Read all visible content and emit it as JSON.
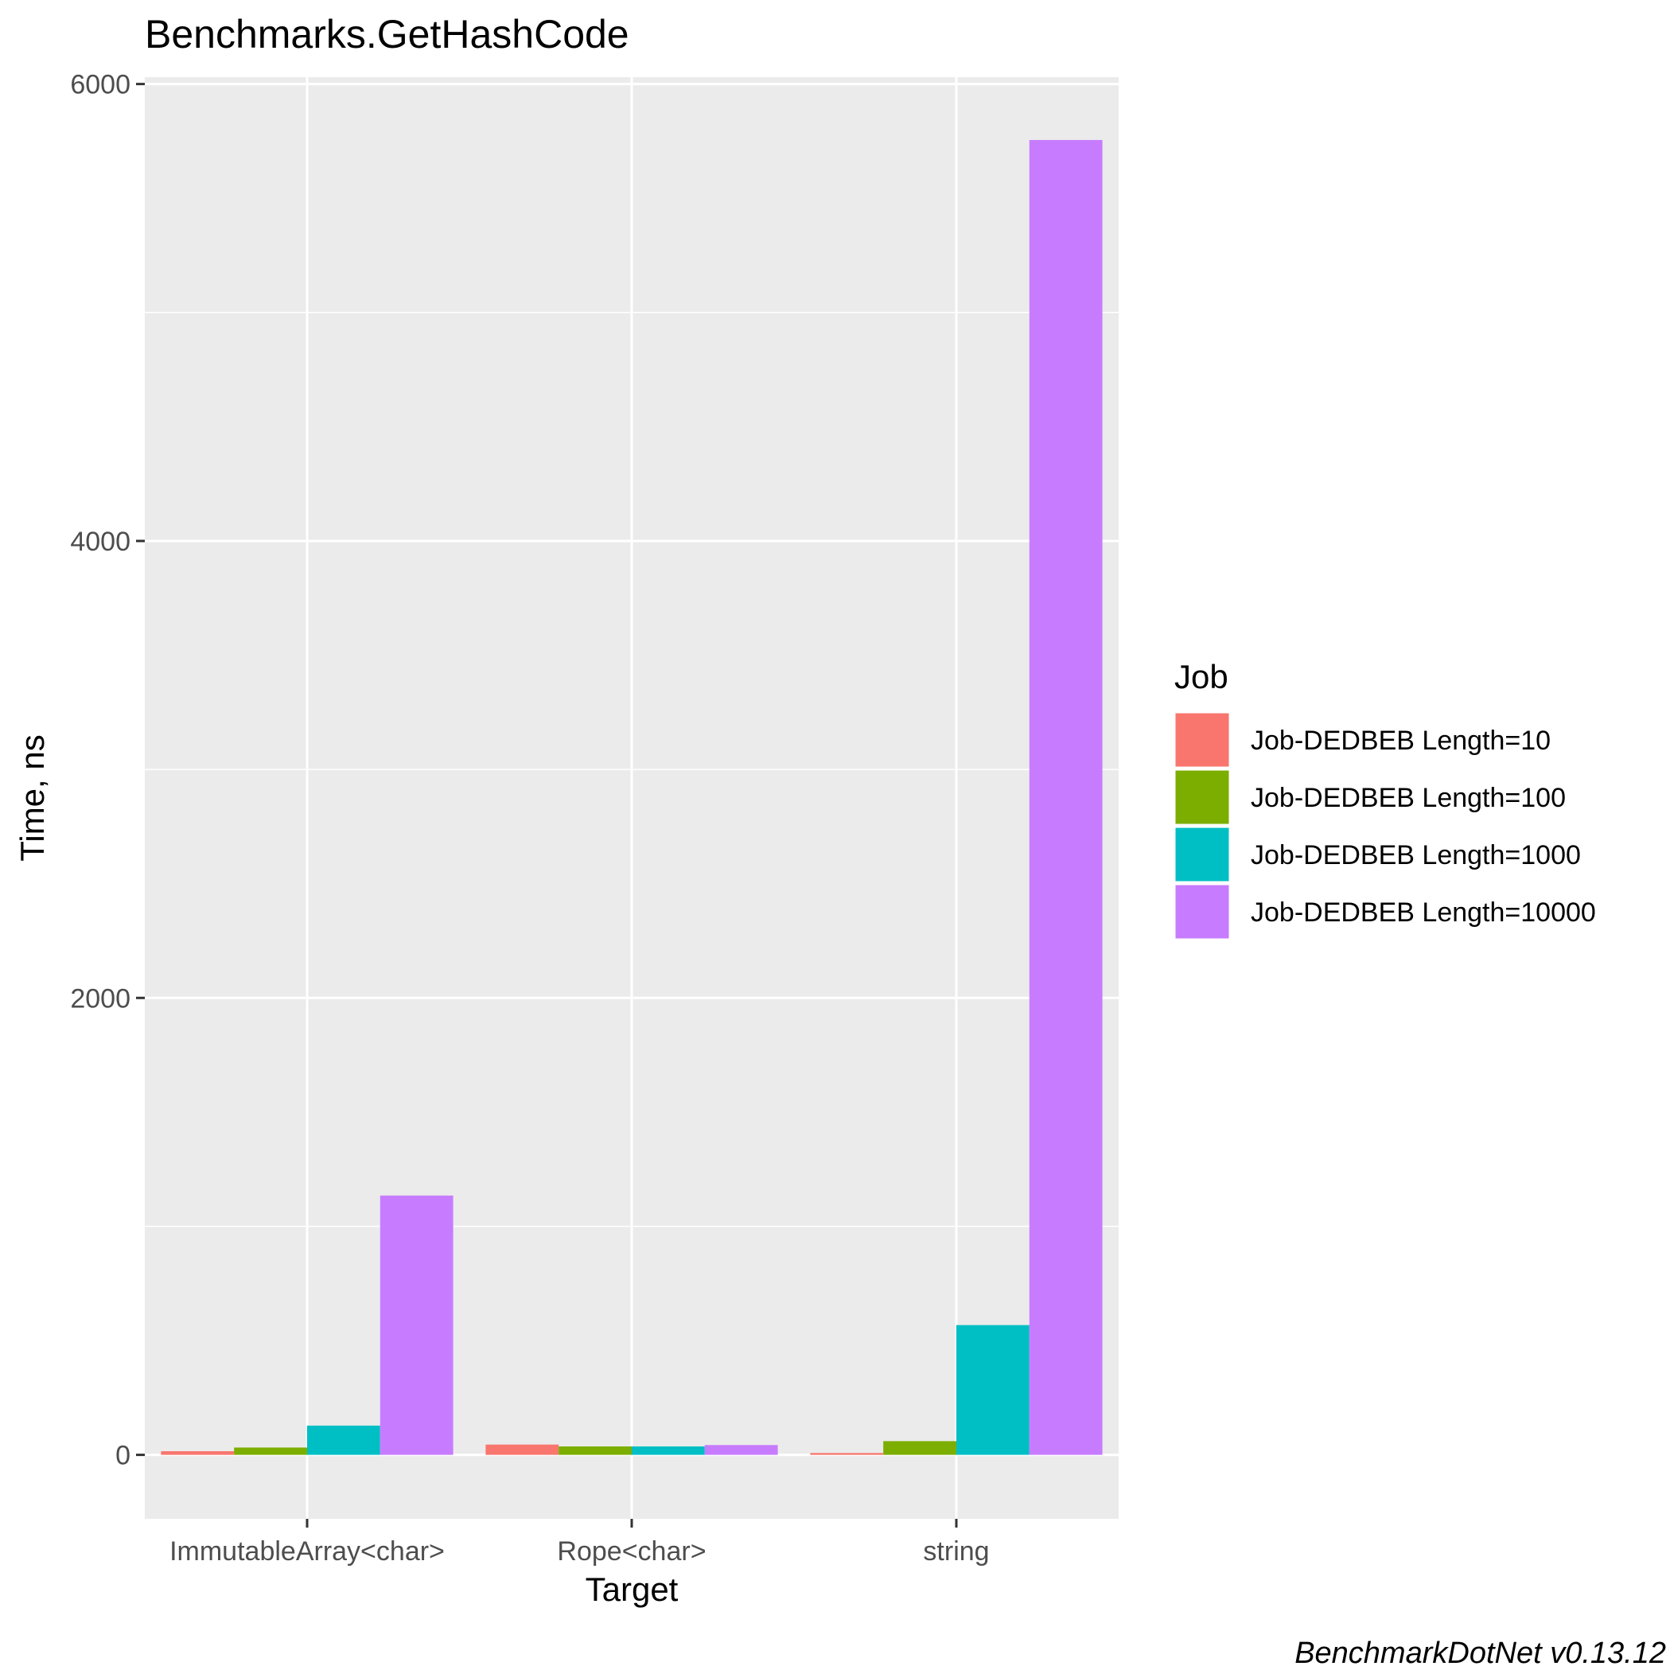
{
  "chart_data": {
    "type": "bar",
    "title": "Benchmarks.GetHashCode",
    "xlabel": "Target",
    "ylabel": "Time, ns",
    "categories": [
      "ImmutableArray<char>",
      "Rope<char>",
      "string"
    ],
    "series": [
      {
        "name": "Job-DEDBEB Length=10",
        "color": "#F8766D",
        "values": [
          16,
          45,
          8
        ]
      },
      {
        "name": "Job-DEDBEB Length=100",
        "color": "#7CAE00",
        "values": [
          32,
          37,
          60
        ]
      },
      {
        "name": "Job-DEDBEB Length=1000",
        "color": "#00BFC4",
        "values": [
          128,
          37,
          568
        ]
      },
      {
        "name": "Job-DEDBEB Length=10000",
        "color": "#C77CFF",
        "values": [
          1135,
          43,
          5755
        ]
      }
    ],
    "ylim": [
      -280,
      6030
    ],
    "yticks": [
      0,
      2000,
      4000,
      6000
    ],
    "legend_title": "Job",
    "legend_position": "right",
    "grid": true,
    "caption": "BenchmarkDotNet v0.13.12"
  }
}
